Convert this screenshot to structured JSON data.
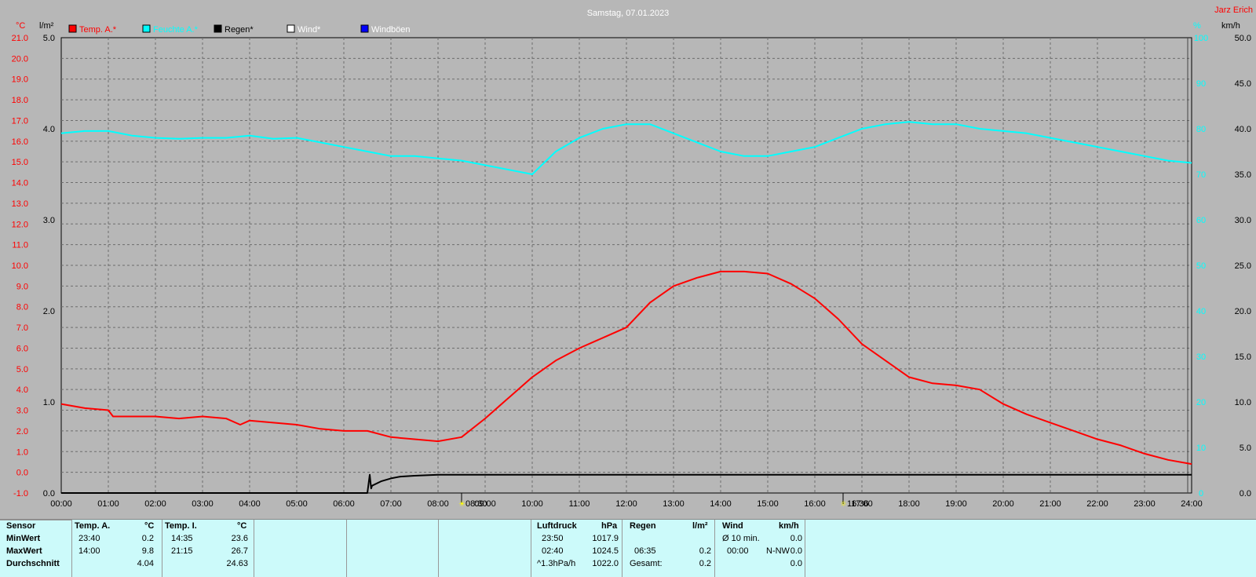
{
  "title": "Samstag, 07.01.2023",
  "author": "Jarz Erich",
  "units": {
    "temp": "°C",
    "rain": "l/m²",
    "humidity": "%",
    "wind": "km/h"
  },
  "legend": [
    {
      "label": "Temp. A.*",
      "color": "#ff0000"
    },
    {
      "label": "Feuchte A.*",
      "color": "#00ffff"
    },
    {
      "label": "Regen*",
      "color": "#000000"
    },
    {
      "label": "Wind*",
      "color": "#ffffff"
    },
    {
      "label": "Windböen",
      "color": "#0000ff"
    }
  ],
  "markers": [
    {
      "label": "08:30",
      "icon": "sunrise-icon"
    },
    {
      "label": "16:36",
      "icon": "sunset-icon"
    }
  ],
  "chart_data": {
    "type": "line",
    "x_ticks": [
      "00:00",
      "01:00",
      "02:00",
      "03:00",
      "04:00",
      "05:00",
      "06:00",
      "07:00",
      "08:00",
      "09:00",
      "10:00",
      "11:00",
      "12:00",
      "13:00",
      "14:00",
      "15:00",
      "16:00",
      "17:00",
      "18:00",
      "19:00",
      "20:00",
      "21:00",
      "22:00",
      "23:00",
      "24:00"
    ],
    "axes": {
      "temp": {
        "min": -1.0,
        "max": 21.0,
        "ticks": [
          "-1.0",
          "0.0",
          "1.0",
          "2.0",
          "3.0",
          "4.0",
          "5.0",
          "6.0",
          "7.0",
          "8.0",
          "9.0",
          "10.0",
          "11.0",
          "12.0",
          "13.0",
          "14.0",
          "15.0",
          "16.0",
          "17.0",
          "18.0",
          "19.0",
          "20.0",
          "21.0"
        ]
      },
      "rain": {
        "min": 0,
        "max": 5,
        "ticks": [
          "0.0",
          "1.0",
          "2.0",
          "3.0",
          "4.0",
          "5.0"
        ]
      },
      "humidity": {
        "min": 0,
        "max": 100,
        "ticks": [
          "0",
          "10",
          "20",
          "30",
          "40",
          "50",
          "60",
          "70",
          "80",
          "90",
          "100"
        ]
      },
      "wind": {
        "min": 0,
        "max": 50,
        "ticks": [
          "0.0",
          "5.0",
          "10.0",
          "15.0",
          "20.0",
          "25.0",
          "30.0",
          "35.0",
          "40.0",
          "45.0",
          "50.0"
        ]
      }
    },
    "series": [
      {
        "name": "Temp. A.*",
        "axis": "temp",
        "color": "#ff0000",
        "x": [
          0,
          0.5,
          1,
          1.1,
          1.5,
          2,
          2.5,
          3,
          3.5,
          3.8,
          4,
          4.5,
          5,
          5.5,
          6,
          6.5,
          7,
          7.5,
          8,
          8.5,
          9,
          9.5,
          10,
          10.5,
          11,
          11.5,
          12,
          12.5,
          13,
          13.5,
          14,
          14.5,
          15,
          15.5,
          16,
          16.5,
          17,
          17.5,
          18,
          18.5,
          19,
          19.5,
          20,
          20.5,
          21,
          21.5,
          22,
          22.5,
          23,
          23.5,
          24
        ],
        "y": [
          3.3,
          3.1,
          3.0,
          2.7,
          2.7,
          2.7,
          2.6,
          2.7,
          2.6,
          2.3,
          2.5,
          2.4,
          2.3,
          2.1,
          2.0,
          2.0,
          1.7,
          1.6,
          1.5,
          1.7,
          2.6,
          3.6,
          4.6,
          5.4,
          6.0,
          6.5,
          7.0,
          8.2,
          9.0,
          9.4,
          9.7,
          9.7,
          9.6,
          9.1,
          8.4,
          7.4,
          6.2,
          5.4,
          4.6,
          4.3,
          4.2,
          4.0,
          3.3,
          2.8,
          2.4,
          2.0,
          1.6,
          1.3,
          0.9,
          0.6,
          0.4
        ]
      },
      {
        "name": "Feuchte A.*",
        "axis": "humidity",
        "color": "#00ffff",
        "x": [
          0,
          0.5,
          1,
          1.5,
          2,
          2.5,
          3,
          3.5,
          4,
          4.5,
          5,
          5.5,
          6,
          6.5,
          7,
          7.5,
          8,
          8.5,
          9,
          9.5,
          10,
          10.5,
          11,
          11.5,
          12,
          12.5,
          13,
          13.5,
          14,
          14.5,
          15,
          15.5,
          16,
          16.5,
          17,
          17.5,
          18,
          18.5,
          19,
          19.5,
          20,
          20.5,
          21,
          21.5,
          22,
          22.5,
          23,
          23.5,
          24
        ],
        "y": [
          79,
          79.5,
          79.5,
          78.5,
          78,
          77.8,
          78,
          78,
          78.5,
          77.8,
          78,
          77,
          76,
          75,
          74,
          74,
          73.5,
          73,
          72,
          71,
          70,
          75,
          78,
          80,
          81,
          81,
          79,
          77,
          75,
          74,
          74,
          75,
          76,
          78,
          80,
          81,
          81.5,
          81,
          81,
          80,
          79.5,
          79,
          78,
          77,
          76,
          75,
          74,
          73,
          72.5
        ]
      },
      {
        "name": "Regen*",
        "axis": "rain",
        "color": "#000000",
        "x": [
          0,
          6.5,
          6.55,
          6.58,
          6.6,
          6.8,
          7.0,
          7.2,
          7.5,
          8,
          24
        ],
        "y": [
          0,
          0,
          0.2,
          0.05,
          0.08,
          0.13,
          0.16,
          0.18,
          0.19,
          0.2,
          0.2
        ]
      }
    ]
  },
  "table": {
    "sensor": {
      "title": "Sensor",
      "rows": [
        "MinWert",
        "MaxWert",
        "Durchschnitt"
      ]
    },
    "temp_a": {
      "title": "Temp. A.",
      "unit": "°C",
      "rows": [
        [
          "23:40",
          "0.2"
        ],
        [
          "14:00",
          "9.8"
        ],
        [
          "",
          "4.04"
        ]
      ]
    },
    "temp_i": {
      "title": "Temp. I.",
      "unit": "°C",
      "rows": [
        [
          "14:35",
          "23.6"
        ],
        [
          "21:15",
          "26.7"
        ],
        [
          "",
          "24.63"
        ]
      ]
    },
    "pressure": {
      "title": "Luftdruck",
      "unit": "hPa",
      "rows": [
        [
          "23:50",
          "1017.9"
        ],
        [
          "02:40",
          "1024.5"
        ],
        [
          "^1.3hPa/h",
          "1022.0"
        ]
      ]
    },
    "rain": {
      "title": "Regen",
      "unit": "l/m²",
      "rows": [
        [
          "",
          ""
        ],
        [
          "06:35",
          "0.2"
        ],
        [
          "Gesamt:",
          "0.2"
        ]
      ]
    },
    "wind": {
      "title": "Wind",
      "unit": "km/h",
      "rows": [
        [
          "Ø 10 min.",
          "",
          "0.0"
        ],
        [
          "00:00",
          "N-NW",
          "0.0"
        ],
        [
          "",
          "",
          "0.0"
        ]
      ]
    }
  }
}
